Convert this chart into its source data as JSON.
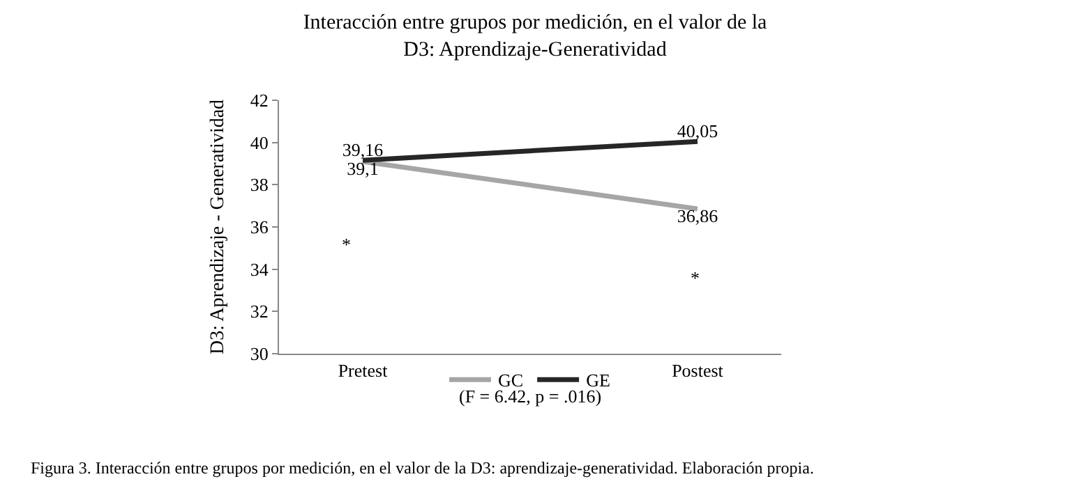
{
  "chart_data": {
    "type": "line",
    "title": "Interacción entre grupos por medición, en el valor de la\nD3: Aprendizaje-Generatividad",
    "ylabel": "D3: Aprendizaje - Generatividad",
    "categories": [
      "Pretest",
      "Postest"
    ],
    "series": [
      {
        "name": "GC",
        "color": "#a6a6a6",
        "values": [
          39.1,
          36.86
        ],
        "value_labels": [
          "39,1",
          "36,86"
        ]
      },
      {
        "name": "GE",
        "color": "#262626",
        "values": [
          39.16,
          40.05
        ],
        "value_labels": [
          "39,16",
          "40,05"
        ]
      }
    ],
    "ylim": [
      30,
      42
    ],
    "yticks": [
      30,
      32,
      34,
      36,
      38,
      40,
      42
    ],
    "legend": "bottom",
    "marker": "none",
    "line_style": "solid",
    "annotations": [
      "*",
      "*",
      "(F = 6.42, p = .016)",
      "Figura 3. Interacción entre grupos por medición, en el valor de la D3: aprendizaje-generatividad. Elaboración propia."
    ]
  }
}
